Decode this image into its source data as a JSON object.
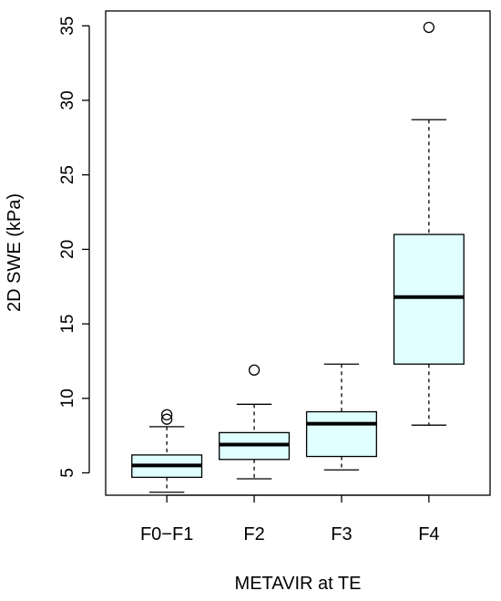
{
  "chart_data": {
    "type": "boxplot",
    "title": "",
    "xlabel": "METAVIR at TE",
    "ylabel": "2D SWE (kPa)",
    "categories": [
      "F0−F1",
      "F2",
      "F3",
      "F4"
    ],
    "ylim": [
      3.5,
      36
    ],
    "yticks": [
      5,
      10,
      15,
      20,
      25,
      30,
      35
    ],
    "box_fill": "#e0ffff",
    "series": [
      {
        "category": "F0−F1",
        "whisker_low": 3.7,
        "q1": 4.7,
        "median": 5.5,
        "q3": 6.2,
        "whisker_high": 8.1,
        "outliers": [
          8.6,
          8.9
        ]
      },
      {
        "category": "F2",
        "whisker_low": 4.6,
        "q1": 5.9,
        "median": 6.9,
        "q3": 7.7,
        "whisker_high": 9.6,
        "outliers": [
          11.9
        ]
      },
      {
        "category": "F3",
        "whisker_low": 5.2,
        "q1": 6.1,
        "median": 8.3,
        "q3": 9.1,
        "whisker_high": 12.3,
        "outliers": []
      },
      {
        "category": "F4",
        "whisker_low": 8.2,
        "q1": 12.3,
        "median": 16.8,
        "q3": 21.0,
        "whisker_high": 28.7,
        "outliers": [
          34.9
        ]
      }
    ]
  }
}
